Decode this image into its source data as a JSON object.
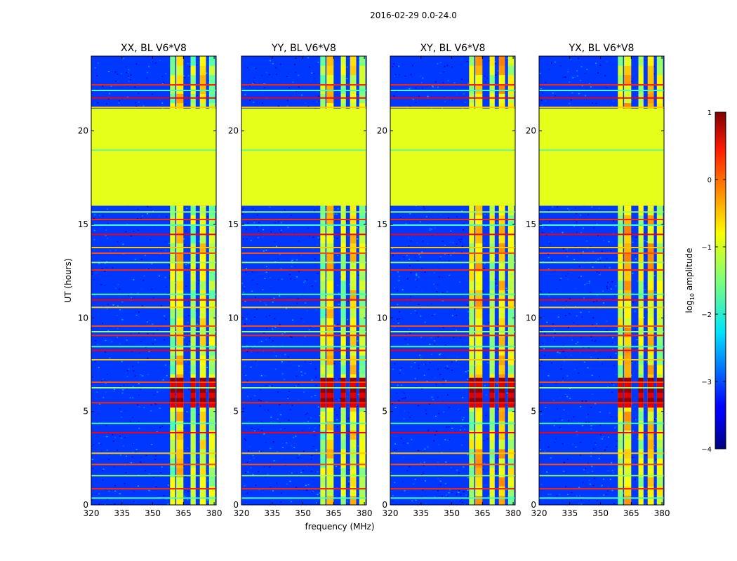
{
  "figure_title": "2016-02-29 0.0-24.0",
  "xlabel": "frequency (MHz)",
  "ylabel": "UT (hours)",
  "colorbar": {
    "label_prefix": "log",
    "label_sub": "10",
    "label_suffix": " amplitude",
    "ticks": [
      {
        "value": 1,
        "label": "1"
      },
      {
        "value": 0,
        "label": "0"
      },
      {
        "value": -1,
        "label": "−1"
      },
      {
        "value": -2,
        "label": "−2"
      },
      {
        "value": -3,
        "label": "−3"
      },
      {
        "value": -4,
        "label": "−4"
      }
    ],
    "range": [
      -4,
      1
    ],
    "colormap": "jet"
  },
  "chart_data": [
    {
      "type": "heatmap",
      "title": "XX, BL V6*V8",
      "xlabel": "frequency (MHz)",
      "ylabel": "UT (hours)",
      "xlim": [
        320,
        381
      ],
      "ylim": [
        0,
        24
      ],
      "xticks": [
        {
          "value": 320,
          "label": "320"
        },
        {
          "value": 335,
          "label": "335"
        },
        {
          "value": 350,
          "label": "350"
        },
        {
          "value": 365,
          "label": "365"
        },
        {
          "value": 380,
          "label": "380"
        }
      ],
      "yticks": [
        {
          "value": 0,
          "label": "0"
        },
        {
          "value": 5,
          "label": "5"
        },
        {
          "value": 10,
          "label": "10"
        },
        {
          "value": 15,
          "label": "15"
        },
        {
          "value": 20,
          "label": "20"
        }
      ]
    },
    {
      "type": "heatmap",
      "title": "YY, BL V6*V8",
      "xlabel": "frequency (MHz)",
      "ylabel": "UT (hours)",
      "xlim": [
        320,
        381
      ],
      "ylim": [
        0,
        24
      ],
      "xticks": [
        {
          "value": 320,
          "label": "320"
        },
        {
          "value": 335,
          "label": "335"
        },
        {
          "value": 350,
          "label": "350"
        },
        {
          "value": 365,
          "label": "365"
        },
        {
          "value": 380,
          "label": "380"
        }
      ],
      "yticks": [
        {
          "value": 0,
          "label": "0"
        },
        {
          "value": 5,
          "label": "5"
        },
        {
          "value": 10,
          "label": "10"
        },
        {
          "value": 15,
          "label": "15"
        },
        {
          "value": 20,
          "label": "20"
        }
      ]
    },
    {
      "type": "heatmap",
      "title": "XY, BL V6*V8",
      "xlabel": "frequency (MHz)",
      "ylabel": "UT (hours)",
      "xlim": [
        320,
        381
      ],
      "ylim": [
        0,
        24
      ],
      "xticks": [
        {
          "value": 320,
          "label": "320"
        },
        {
          "value": 335,
          "label": "335"
        },
        {
          "value": 350,
          "label": "350"
        },
        {
          "value": 365,
          "label": "365"
        },
        {
          "value": 380,
          "label": "380"
        }
      ],
      "yticks": [
        {
          "value": 0,
          "label": "0"
        },
        {
          "value": 5,
          "label": "5"
        },
        {
          "value": 10,
          "label": "10"
        },
        {
          "value": 15,
          "label": "15"
        },
        {
          "value": 20,
          "label": "20"
        }
      ]
    },
    {
      "type": "heatmap",
      "title": "YX, BL V6*V8",
      "xlabel": "frequency (MHz)",
      "ylabel": "UT (hours)",
      "xlim": [
        320,
        381
      ],
      "ylim": [
        0,
        24
      ],
      "xticks": [
        {
          "value": 320,
          "label": "320"
        },
        {
          "value": 335,
          "label": "335"
        },
        {
          "value": 350,
          "label": "350"
        },
        {
          "value": 365,
          "label": "365"
        },
        {
          "value": 380,
          "label": "380"
        }
      ],
      "yticks": [
        {
          "value": 0,
          "label": "0"
        },
        {
          "value": 5,
          "label": "5"
        },
        {
          "value": 10,
          "label": "10"
        },
        {
          "value": 15,
          "label": "15"
        },
        {
          "value": 20,
          "label": "20"
        }
      ]
    }
  ],
  "features": {
    "background_log_amp": -3.1,
    "flagged_time_range": [
      16.0,
      21.2
    ],
    "flagged_log_amp": -1.0,
    "rfi_channel_bands_mhz": [
      [
        358.5,
        361.0
      ],
      [
        361.5,
        365.0
      ],
      [
        368.5,
        371.0
      ],
      [
        373.0,
        376.0
      ],
      [
        377.5,
        380.5
      ]
    ],
    "rfi_strong_time_range": [
      5.2,
      6.8
    ],
    "strong_rfi_log_amp": 0.6,
    "channel_band_log_amp": -1.3,
    "horizontal_rfi_lines_ut": [
      0.4,
      0.9,
      1.6,
      2.2,
      2.8,
      3.9,
      4.4,
      5.5,
      6.3,
      6.6,
      7.8,
      8.3,
      8.5,
      9.1,
      9.3,
      9.6,
      10.6,
      11.0,
      11.3,
      12.6,
      13.0,
      13.5,
      13.8,
      14.5,
      15.0,
      15.3,
      15.7,
      19.0,
      21.3,
      21.8,
      22.2,
      22.5
    ]
  }
}
